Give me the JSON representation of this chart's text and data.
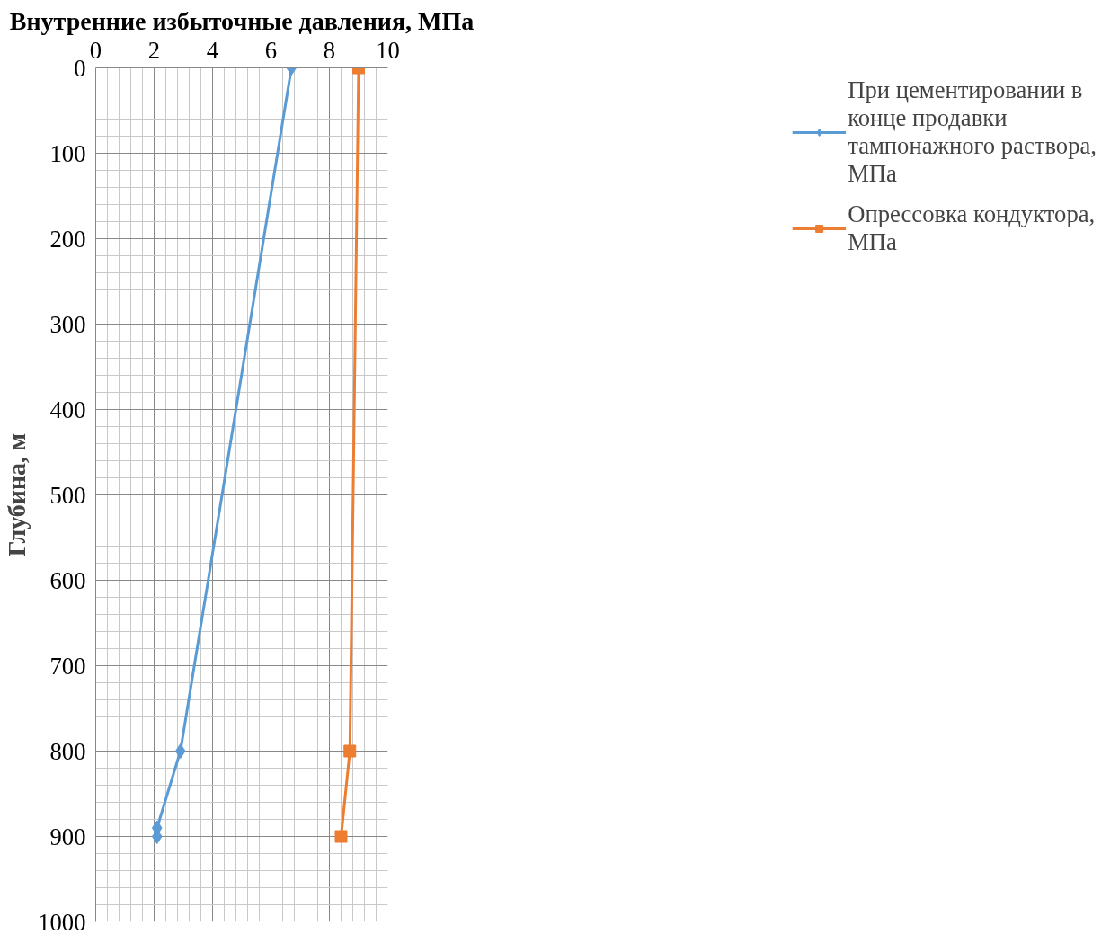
{
  "chart_data": {
    "type": "line",
    "title": "Внутренние избыточные давления, МПа",
    "ylabel": "Глубина, м",
    "xlim": [
      0,
      10
    ],
    "xticks": [
      0,
      2,
      4,
      6,
      8,
      10
    ],
    "ylim": [
      1000,
      0
    ],
    "yticks": [
      0,
      100,
      200,
      300,
      400,
      500,
      600,
      700,
      800,
      900,
      1000
    ],
    "grid": true,
    "legend": "right",
    "line_style": "solid",
    "series": [
      {
        "name": "При цементировании в конце продавки тампонажного раствора, МПа",
        "color": "#5b9bd5",
        "marker": "diamond",
        "x": [
          6.7,
          2.9,
          2.1,
          2.1
        ],
        "values": [
          0,
          800,
          890,
          900
        ]
      },
      {
        "name": "Опрессовка кондуктора, МПа",
        "color": "#ed7d31",
        "marker": "square",
        "x": [
          9.0,
          8.7,
          8.4
        ],
        "values": [
          0,
          800,
          900
        ]
      }
    ]
  }
}
